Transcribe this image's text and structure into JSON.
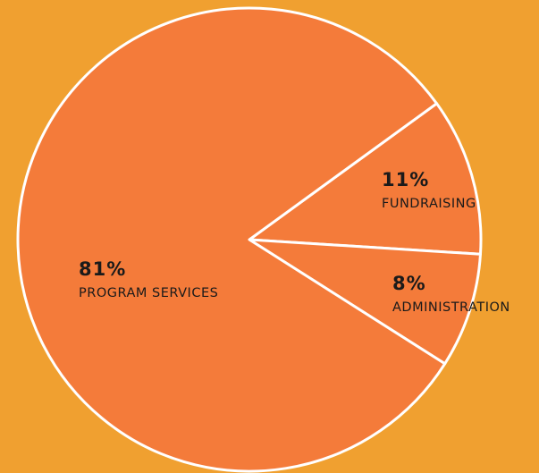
{
  "chart_data": {
    "type": "pie",
    "categories": [
      "FUNDRAISING",
      "ADMINISTRATION",
      "PROGRAM SERVICES"
    ],
    "values": [
      11,
      8,
      81
    ],
    "value_labels": [
      "11%",
      "8%",
      "81%"
    ],
    "color": "#f47b3a"
  }
}
